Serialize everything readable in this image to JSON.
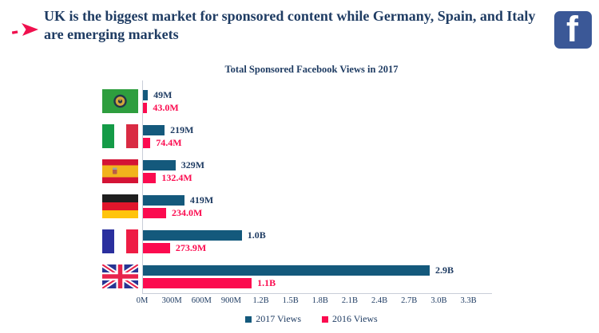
{
  "header": {
    "headline_line1": "UK is the biggest market for sponsored content while Germany, Spain, and Italy",
    "headline_line2": "are emerging markets"
  },
  "icons": {
    "facebook_glyph": "f",
    "arrow_bullet": "pink-dash-arrow"
  },
  "colors": {
    "navy_text": "#1F3C63",
    "teal_2017": "#14597C",
    "pink_2016": "#FB0B4F",
    "facebook_blue": "#3B5897",
    "axis_line": "#C9CED8",
    "background": "#FFFFFF"
  },
  "chart_data": {
    "type": "bar",
    "orientation": "horizontal",
    "title": "Total Sponsored Facebook Views in 2017",
    "categories": [
      "Green flag with gold emblem",
      "Italy",
      "Spain",
      "Germany",
      "France",
      "United Kingdom"
    ],
    "flags": [
      "green-emblem",
      "italy",
      "spain",
      "germany",
      "france",
      "uk"
    ],
    "series": [
      {
        "name": "2017 Views",
        "color": "#14597C",
        "values_millions": [
          49,
          219,
          329,
          419,
          1000,
          2900
        ],
        "labels": [
          "49M",
          "219M",
          "329M",
          "419M",
          "1.0B",
          "2.9B"
        ]
      },
      {
        "name": "2016 Views",
        "color": "#FB0B4F",
        "values_millions": [
          43.0,
          74.4,
          132.4,
          234.0,
          273.9,
          1100
        ],
        "labels": [
          "43.0M",
          "74.4M",
          "132.4M",
          "234.0M",
          "273.9M",
          "1.1B"
        ]
      }
    ],
    "x_axis": {
      "ticks": [
        "0M",
        "300M",
        "600M",
        "900M",
        "1.2B",
        "1.5B",
        "1.8B",
        "2.1B",
        "2.4B",
        "2.7B",
        "3.0B",
        "3.3B"
      ],
      "tick_values_millions": [
        0,
        300,
        600,
        900,
        1200,
        1500,
        1800,
        2100,
        2400,
        2700,
        3000,
        3300
      ],
      "max_millions": 3300
    },
    "legend": [
      "2017 Views",
      "2016 Views"
    ],
    "legend_position": "bottom-center",
    "grid": false
  }
}
